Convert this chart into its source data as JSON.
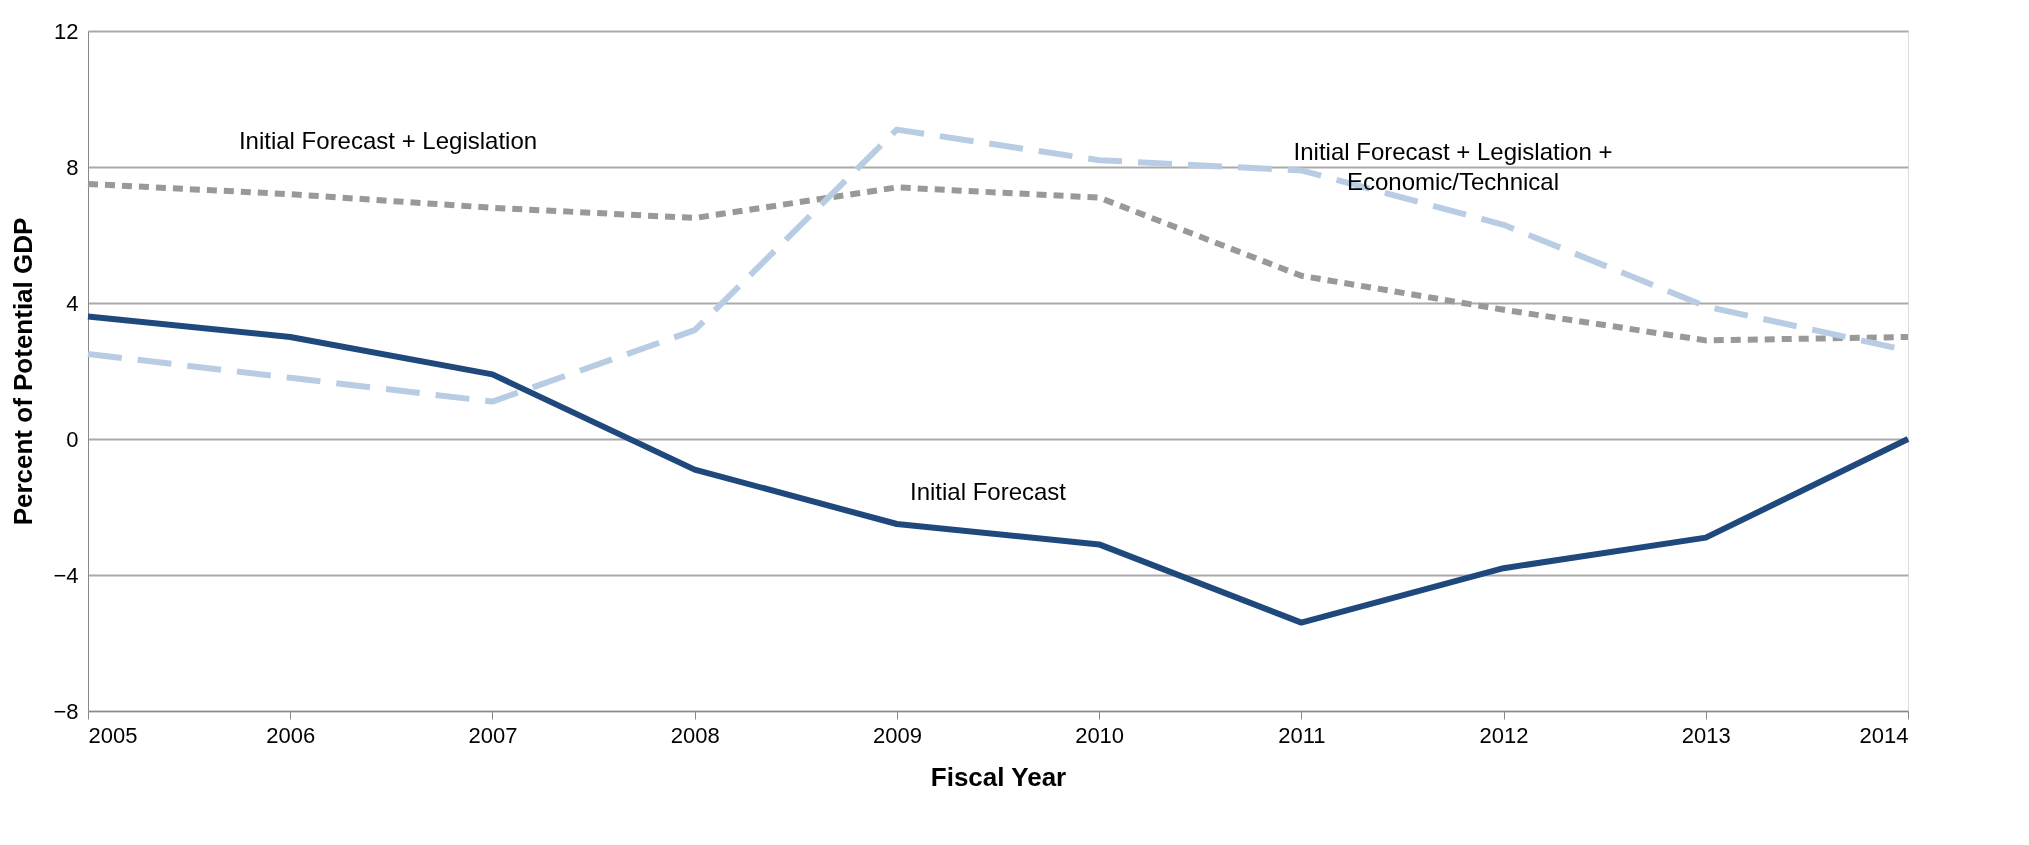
{
  "chart_data": {
    "type": "line",
    "xlabel": "Fiscal Year",
    "ylabel": "Percent of Potential GDP",
    "x": [
      2005,
      2006,
      2007,
      2008,
      2009,
      2010,
      2011,
      2012,
      2013,
      2014
    ],
    "xlim": [
      2005,
      2014
    ],
    "xticks": [
      2005,
      2006,
      2007,
      2008,
      2009,
      2010,
      2011,
      2012,
      2013,
      2014
    ],
    "ylim": [
      -8,
      12
    ],
    "yticks": [
      -8,
      -4,
      0,
      4,
      8,
      12
    ],
    "grid": "y",
    "marker": "none",
    "series": [
      {
        "name": "Initial Forecast + Legislation",
        "color": "#999999",
        "line_style": "dotted",
        "values": [
          7.5,
          7.2,
          6.8,
          6.5,
          7.4,
          7.1,
          4.8,
          3.8,
          2.9,
          3.0
        ]
      },
      {
        "name": "Initial Forecast + Legislation +\nEconomic/Technical",
        "color": "#b8cce4",
        "line_style": "dashed",
        "values": [
          2.5,
          1.8,
          1.1,
          3.2,
          9.1,
          8.2,
          7.9,
          6.3,
          3.9,
          2.6
        ]
      },
      {
        "name": "Initial Forecast",
        "color": "#1f497d",
        "line_style": "solid",
        "values": [
          3.6,
          3.0,
          1.9,
          -0.9,
          -2.5,
          -3.1,
          -5.4,
          -3.8,
          -2.9,
          0.0
        ]
      }
    ]
  }
}
